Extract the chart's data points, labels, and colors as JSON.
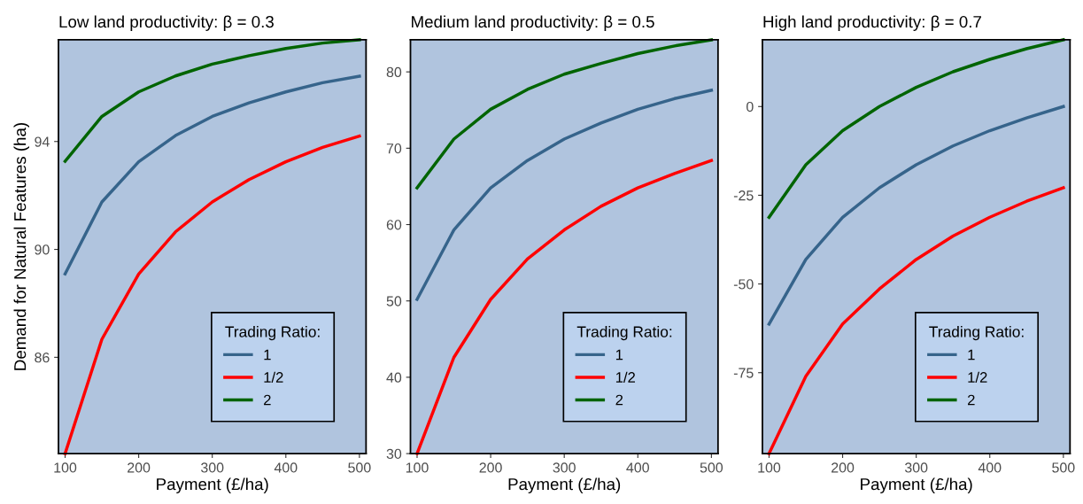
{
  "chart_data": [
    {
      "type": "line",
      "title": "Low land productivity: β = 0.3",
      "xlabel": "Payment (£/ha)",
      "ylabel": "Demand for Natural Features (ha)",
      "legend_title": "Trading Ratio:",
      "legend": "bottom right",
      "x": [
        100,
        150,
        200,
        250,
        300,
        350,
        400,
        450,
        500
      ],
      "xlim": [
        91,
        509
      ],
      "xticks": [
        100,
        200,
        300,
        400,
        500
      ],
      "ylim": [
        82.43,
        97.77
      ],
      "yticks": [
        86,
        90,
        94
      ],
      "series": [
        {
          "name": "1",
          "color": "#36648b",
          "values": [
            89.09,
            91.76,
            93.25,
            94.22,
            94.93,
            95.43,
            95.84,
            96.18,
            96.42
          ]
        },
        {
          "name": "1/2",
          "color": "#ff0000",
          "values": [
            82.43,
            86.67,
            89.09,
            90.65,
            91.76,
            92.59,
            93.25,
            93.78,
            94.2
          ]
        },
        {
          "name": "2",
          "color": "#006400",
          "values": [
            93.27,
            94.93,
            95.84,
            96.43,
            96.87,
            97.18,
            97.45,
            97.65,
            97.77
          ]
        }
      ]
    },
    {
      "type": "line",
      "title": "Medium land productivity: β = 0.5",
      "xlabel": "Payment (£/ha)",
      "legend_title": "Trading Ratio:",
      "legend": "bottom right",
      "x": [
        100,
        150,
        200,
        250,
        300,
        350,
        400,
        450,
        500
      ],
      "xlim": [
        91,
        509
      ],
      "xticks": [
        100,
        200,
        300,
        400,
        500
      ],
      "ylim": [
        30,
        84.2
      ],
      "yticks": [
        30,
        40,
        50,
        60,
        70,
        80
      ],
      "series": [
        {
          "name": "1",
          "color": "#36648b",
          "values": [
            50.2,
            59.3,
            64.8,
            68.4,
            71.2,
            73.3,
            75.1,
            76.5,
            77.6
          ]
        },
        {
          "name": "1/2",
          "color": "#ff0000",
          "values": [
            30,
            42.6,
            50.2,
            55.5,
            59.3,
            62.4,
            64.8,
            66.7,
            68.4
          ]
        },
        {
          "name": "2",
          "color": "#006400",
          "values": [
            64.8,
            71.2,
            75.1,
            77.7,
            79.7,
            81.1,
            82.4,
            83.4,
            84.2
          ]
        }
      ]
    },
    {
      "type": "line",
      "title": "High land productivity: β = 0.7",
      "xlabel": "Payment (£/ha)",
      "legend_title": "Trading Ratio:",
      "legend": "bottom right",
      "x": [
        100,
        150,
        200,
        250,
        300,
        350,
        400,
        450,
        500
      ],
      "xlim": [
        91,
        509
      ],
      "xticks": [
        100,
        200,
        300,
        400,
        500
      ],
      "ylim": [
        -97.8,
        18.8
      ],
      "yticks": [
        -75,
        -50,
        -25,
        0
      ],
      "series": [
        {
          "name": "1",
          "color": "#36648b",
          "values": [
            -61.3,
            -43.1,
            -31.2,
            -22.9,
            -16.4,
            -11.1,
            -6.8,
            -3.2,
            0
          ]
        },
        {
          "name": "1/2",
          "color": "#ff0000",
          "values": [
            -97.8,
            -76,
            -61.3,
            -51.4,
            -43.1,
            -36.5,
            -31.2,
            -26.7,
            -22.9
          ]
        },
        {
          "name": "2",
          "color": "#006400",
          "values": [
            -31.2,
            -16.4,
            -6.8,
            0,
            5.4,
            9.8,
            13.3,
            16.3,
            18.8
          ]
        }
      ]
    }
  ]
}
